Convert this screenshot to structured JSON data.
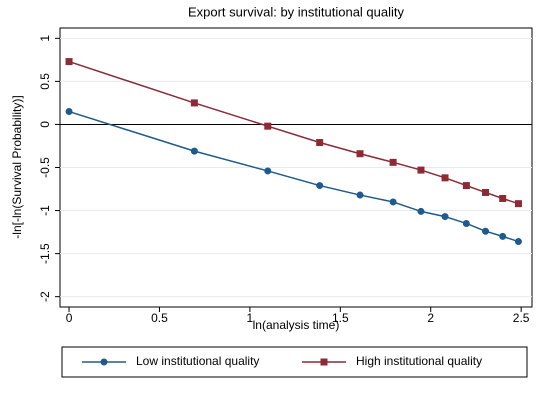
{
  "chart_data": {
    "type": "line",
    "title": "Export survival: by institutional quality",
    "x_label": "ln(analysis time)",
    "y_label": "-ln[-ln(Survival Probability)]",
    "x": [
      0,
      0.693,
      1.099,
      1.386,
      1.609,
      1.792,
      1.946,
      2.079,
      2.197,
      2.303,
      2.398,
      2.485
    ],
    "series": [
      {
        "name": "Low institutional quality",
        "color": "#1f5a8c",
        "marker": "circle",
        "values": [
          0.15,
          -0.31,
          -0.54,
          -0.71,
          -0.82,
          -0.9,
          -1.01,
          -1.07,
          -1.15,
          -1.24,
          -1.3,
          -1.36
        ]
      },
      {
        "name": "High institutional quality",
        "color": "#8c2a35",
        "marker": "square",
        "values": [
          0.73,
          0.25,
          -0.02,
          -0.21,
          -0.34,
          -0.44,
          -0.53,
          -0.62,
          -0.71,
          -0.79,
          -0.86,
          -0.92
        ]
      }
    ],
    "xlim": [
      -0.05,
      2.56
    ],
    "ylim": [
      -2.12,
      1.12
    ],
    "xticks": [
      0,
      0.5,
      1,
      1.5,
      2,
      2.5
    ],
    "yticks": [
      -2,
      -1.5,
      -1,
      -0.5,
      0,
      0.5,
      1
    ],
    "reference_line": 0,
    "grid": true,
    "legend": "bottom"
  }
}
